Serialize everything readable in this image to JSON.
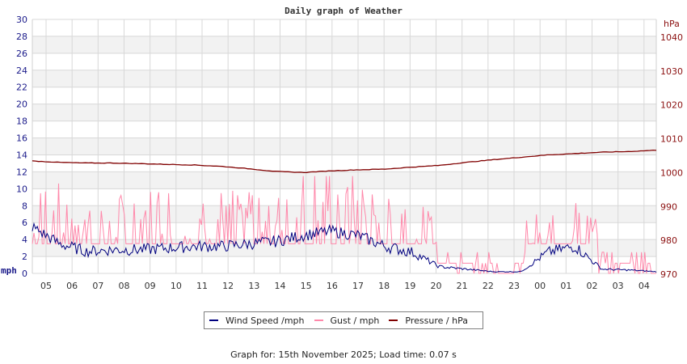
{
  "chart_data": {
    "type": "line",
    "title": "Daily graph of Weather",
    "xlabel": "",
    "ylabel_left": "mph",
    "ylabel_right": "hPa",
    "ylim_left": [
      0,
      30
    ],
    "ylim_right": [
      970,
      1045
    ],
    "yticks_left": [
      0,
      2,
      4,
      6,
      8,
      10,
      12,
      14,
      16,
      18,
      20,
      22,
      24,
      26,
      28,
      30
    ],
    "yticks_right": [
      970,
      980,
      990,
      1000,
      1010,
      1020,
      1030,
      1040
    ],
    "x_categories": [
      "05",
      "06",
      "07",
      "08",
      "09",
      "10",
      "11",
      "12",
      "13",
      "14",
      "15",
      "16",
      "17",
      "18",
      "19",
      "20",
      "21",
      "22",
      "23",
      "00",
      "01",
      "02",
      "03",
      "04"
    ],
    "grid": true,
    "legend_position": "bottom",
    "series": [
      {
        "name": "Wind Speed /mph",
        "color": "#00007f",
        "axis": "left",
        "values": [
          5.5,
          3.5,
          2.6,
          2.8,
          2.8,
          3.0,
          3.2,
          3.2,
          3.5,
          3.8,
          4.5,
          5.0,
          4.5,
          3.2,
          2.5,
          0.8,
          0.5,
          0.2,
          0.2,
          2.5,
          3.2,
          0.5,
          0.4,
          0.2
        ]
      },
      {
        "name": "Gust / mph",
        "color": "#ff88aa",
        "axis": "left",
        "values": [
          9.5,
          6.0,
          5.0,
          5.0,
          5.5,
          6.0,
          5.5,
          5.5,
          6.5,
          7.5,
          8.0,
          8.5,
          7.5,
          5.5,
          5.0,
          2.0,
          1.5,
          0.5,
          0.5,
          4.5,
          6.5,
          1.5,
          1.2,
          0.5
        ]
      },
      {
        "name": "Pressure / hPa",
        "color": "#800000",
        "axis": "right",
        "values": [
          1003.2,
          1002.8,
          1002.6,
          1002.6,
          1002.4,
          1002.2,
          1002.0,
          1001.6,
          1000.9,
          1000.1,
          999.8,
          1000.3,
          1000.6,
          1000.8,
          1001.4,
          1001.9,
          1002.8,
          1003.6,
          1004.3,
          1005.0,
          1005.4,
          1005.8,
          1006.0,
          1006.4
        ]
      }
    ]
  },
  "header": {
    "title": "Daily graph of Weather"
  },
  "axes": {
    "left_unit": "mph",
    "right_unit": "hPa"
  },
  "legend": {
    "items": [
      {
        "label": "Wind Speed /mph",
        "color": "#00007f"
      },
      {
        "label": "Gust / mph",
        "color": "#ff88aa"
      },
      {
        "label": "Pressure / hPa",
        "color": "#800000"
      }
    ]
  },
  "footer": {
    "text": "Graph for: 15th November 2025; Load time: 0.07 s"
  }
}
